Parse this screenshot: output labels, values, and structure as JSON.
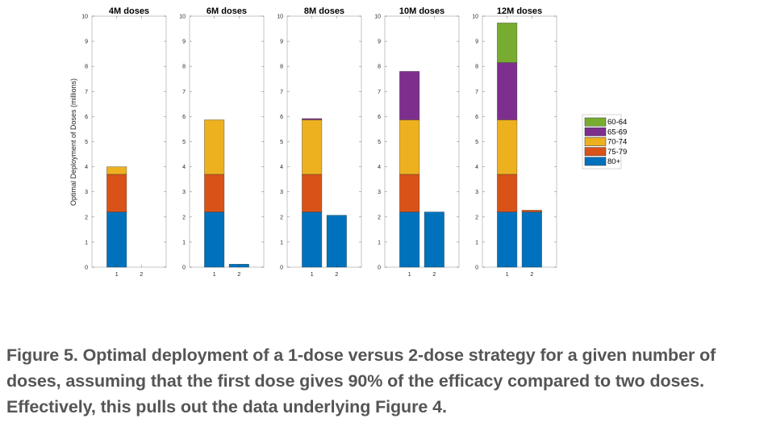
{
  "chart_data": {
    "type": "bar",
    "stacked": true,
    "ylabel": "Optimal Deployment of Doses (millions)",
    "ylim": [
      0,
      10
    ],
    "yticks": [
      0,
      1,
      2,
      3,
      4,
      5,
      6,
      7,
      8,
      9,
      10
    ],
    "categories": [
      "1",
      "2"
    ],
    "legend": {
      "placement": "right",
      "entries": [
        {
          "name": "60-64",
          "color": "#77AC30"
        },
        {
          "name": "65-69",
          "color": "#7E2F8E"
        },
        {
          "name": "70-74",
          "color": "#EDB120"
        },
        {
          "name": "75-79",
          "color": "#D95319"
        },
        {
          "name": "80+",
          "color": "#0072BD"
        }
      ]
    },
    "stack_order": [
      "80+",
      "75-79",
      "70-74",
      "65-69",
      "60-64"
    ],
    "panels": [
      {
        "title": "4M doses",
        "bars": [
          {
            "category": "1",
            "values": {
              "80+": 2.2,
              "75-79": 1.5,
              "70-74": 0.3,
              "65-69": 0,
              "60-64": 0
            }
          },
          {
            "category": "2",
            "values": {
              "80+": 0,
              "75-79": 0,
              "70-74": 0,
              "65-69": 0,
              "60-64": 0
            }
          }
        ]
      },
      {
        "title": "6M doses",
        "bars": [
          {
            "category": "1",
            "values": {
              "80+": 2.2,
              "75-79": 1.5,
              "70-74": 2.17,
              "65-69": 0,
              "60-64": 0
            }
          },
          {
            "category": "2",
            "values": {
              "80+": 0.12,
              "75-79": 0,
              "70-74": 0,
              "65-69": 0,
              "60-64": 0
            }
          }
        ]
      },
      {
        "title": "8M doses",
        "bars": [
          {
            "category": "1",
            "values": {
              "80+": 2.2,
              "75-79": 1.5,
              "70-74": 2.17,
              "65-69": 0.05,
              "60-64": 0
            }
          },
          {
            "category": "2",
            "values": {
              "80+": 2.07,
              "75-79": 0,
              "70-74": 0,
              "65-69": 0,
              "60-64": 0
            }
          }
        ]
      },
      {
        "title": "10M doses",
        "bars": [
          {
            "category": "1",
            "values": {
              "80+": 2.2,
              "75-79": 1.5,
              "70-74": 2.17,
              "65-69": 1.93,
              "60-64": 0
            }
          },
          {
            "category": "2",
            "values": {
              "80+": 2.2,
              "75-79": 0,
              "70-74": 0,
              "65-69": 0,
              "60-64": 0
            }
          }
        ]
      },
      {
        "title": "12M doses",
        "bars": [
          {
            "category": "1",
            "values": {
              "80+": 2.2,
              "75-79": 1.5,
              "70-74": 2.17,
              "65-69": 2.28,
              "60-64": 1.58
            }
          },
          {
            "category": "2",
            "values": {
              "80+": 2.2,
              "75-79": 0.07,
              "70-74": 0,
              "65-69": 0,
              "60-64": 0
            }
          }
        ]
      }
    ],
    "grid": false
  },
  "caption": "Figure 5. Optimal deployment of a 1-dose versus 2-dose strategy for a given number of doses, assuming that the first dose gives 90% of the efficacy compared to two doses. Effectively, this pulls out the data underlying Figure 4."
}
